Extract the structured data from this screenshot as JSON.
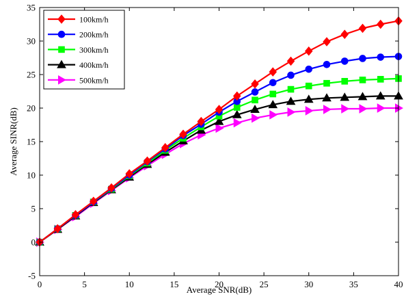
{
  "chart_data": {
    "type": "line",
    "title": "",
    "xlabel": "Average SNR(dB)",
    "ylabel": "Average SINR(dB)",
    "xlim": [
      0,
      40
    ],
    "ylim": [
      -5,
      35
    ],
    "xticks": [
      0,
      5,
      10,
      15,
      20,
      25,
      30,
      35,
      40
    ],
    "yticks": [
      -5,
      0,
      5,
      10,
      15,
      20,
      25,
      30,
      35
    ],
    "grid": false,
    "legend_position": "top-left",
    "x": [
      0,
      2,
      4,
      6,
      8,
      10,
      12,
      14,
      16,
      18,
      20,
      22,
      24,
      26,
      28,
      30,
      32,
      34,
      36,
      38,
      40
    ],
    "series": [
      {
        "name": "100km/h",
        "color": "#ff0000",
        "marker": "diamond",
        "values": [
          0,
          2,
          4.1,
          6.1,
          8.1,
          10.2,
          12.1,
          14.1,
          16.1,
          18.0,
          19.8,
          21.8,
          23.6,
          25.4,
          27.0,
          28.5,
          29.9,
          31.0,
          31.9,
          32.5,
          33.0
        ]
      },
      {
        "name": "200km/h",
        "color": "#0000ff",
        "marker": "circle",
        "values": [
          0,
          2,
          4.0,
          6.0,
          8.0,
          10.0,
          12.0,
          13.9,
          15.9,
          17.6,
          19.4,
          21.0,
          22.4,
          23.8,
          24.9,
          25.8,
          26.5,
          27.0,
          27.4,
          27.6,
          27.7
        ]
      },
      {
        "name": "300km/h",
        "color": "#00ff00",
        "marker": "square",
        "values": [
          0,
          2,
          4.0,
          6.0,
          7.9,
          9.9,
          11.8,
          13.7,
          15.5,
          17.2,
          18.8,
          20.1,
          21.2,
          22.1,
          22.8,
          23.3,
          23.7,
          24.0,
          24.2,
          24.3,
          24.4
        ]
      },
      {
        "name": "400km/h",
        "color": "#000000",
        "marker": "triangle-up",
        "values": [
          0,
          1.9,
          3.9,
          5.9,
          7.8,
          9.7,
          11.6,
          13.4,
          15.1,
          16.7,
          18.0,
          19.0,
          19.8,
          20.5,
          21.0,
          21.3,
          21.5,
          21.6,
          21.7,
          21.8,
          21.8
        ]
      },
      {
        "name": "500km/h",
        "color": "#ff00ff",
        "marker": "triangle-right",
        "values": [
          0,
          1.9,
          3.8,
          5.8,
          7.7,
          9.6,
          11.4,
          13.1,
          14.7,
          16.0,
          17.0,
          17.8,
          18.5,
          19.0,
          19.4,
          19.6,
          19.8,
          19.9,
          19.9,
          20.0,
          20.0
        ]
      }
    ]
  }
}
